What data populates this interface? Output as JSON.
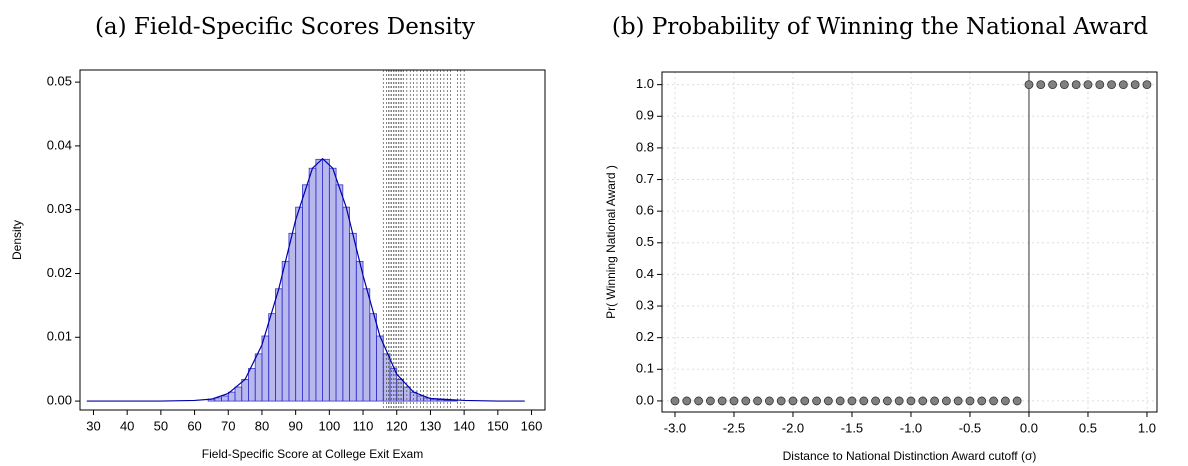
{
  "chart_data": [
    {
      "type": "histogram",
      "title": "(a) Field-Specific Scores Density",
      "x_label": "Field-Specific Score at College Exit Exam",
      "y_label": "Density",
      "color": "#3333cc",
      "bins": [
        64,
        66,
        68,
        70,
        72,
        74,
        76,
        78,
        80,
        82,
        84,
        86,
        88,
        90,
        92,
        94,
        96,
        98,
        100,
        102,
        104,
        106,
        108,
        110,
        112,
        114,
        116,
        118,
        120,
        122,
        124,
        126,
        128,
        130,
        132,
        134,
        136,
        138,
        140
      ],
      "values": [
        0.0003,
        0.0005,
        0.0008,
        0.0014,
        0.0022,
        0.0034,
        0.0051,
        0.0074,
        0.0102,
        0.0137,
        0.0176,
        0.0219,
        0.0263,
        0.0304,
        0.0339,
        0.0365,
        0.0379,
        0.0379,
        0.0365,
        0.0339,
        0.0304,
        0.0263,
        0.0219,
        0.0176,
        0.0137,
        0.0102,
        0.0074,
        0.0051,
        0.0034,
        0.0022,
        0.0014,
        0.0008,
        0.0005,
        0.0003,
        0.0002,
        0.0001,
        0.0001,
        0
      ],
      "curve": {
        "x": [
          28,
          50,
          60,
          65,
          70,
          75,
          80,
          85,
          90,
          95,
          98,
          101,
          105,
          110,
          115,
          120,
          125,
          130,
          140,
          150,
          158
        ],
        "y": [
          0,
          0,
          0.0001,
          0.0003,
          0.0012,
          0.0034,
          0.0088,
          0.0176,
          0.0284,
          0.0365,
          0.038,
          0.0365,
          0.0304,
          0.0197,
          0.0102,
          0.0042,
          0.0014,
          0.0004,
          0.0001,
          0,
          0
        ]
      },
      "cutoffs": [
        116,
        117,
        117.5,
        118,
        118.5,
        119,
        119.5,
        120,
        120.5,
        121,
        121.5,
        122,
        123,
        124,
        125,
        126,
        127,
        128,
        129,
        130,
        131,
        132,
        133,
        134,
        135,
        136,
        138,
        139,
        140
      ],
      "xlim": [
        26,
        164
      ],
      "ylim": [
        -0.0014,
        0.0519
      ],
      "xticks": [
        30,
        40,
        50,
        60,
        70,
        80,
        90,
        100,
        110,
        120,
        130,
        140,
        150,
        160
      ],
      "yticks": [
        {
          "value": 0,
          "label": "0.00"
        },
        {
          "value": 0.01,
          "label": "0.01"
        },
        {
          "value": 0.02,
          "label": "0.02"
        },
        {
          "value": 0.03,
          "label": "0.03"
        },
        {
          "value": 0.04,
          "label": "0.04"
        },
        {
          "value": 0.05,
          "label": "0.05"
        }
      ],
      "grid": false
    },
    {
      "type": "scatter",
      "title": "(b) Probability of Winning the National Award",
      "x_label": "Distance to National Distinction Award cutoff (σ)",
      "y_label": "Pr( Winning National Award )",
      "color": "#808080",
      "x": [
        -3,
        -2.9,
        -2.8,
        -2.7,
        -2.6,
        -2.5,
        -2.4,
        -2.3,
        -2.2,
        -2.1,
        -2,
        -1.9,
        -1.8,
        -1.7,
        -1.6,
        -1.5,
        -1.4,
        -1.3,
        -1.2,
        -1.1,
        -1,
        -0.9,
        -0.8,
        -0.7,
        -0.6,
        -0.5,
        -0.4,
        -0.3,
        -0.2,
        -0.1,
        0,
        0.1,
        0.2,
        0.3,
        0.4,
        0.5,
        0.6,
        0.7,
        0.8,
        0.9,
        1
      ],
      "values": [
        0,
        0,
        0,
        0,
        0,
        0,
        0,
        0,
        0,
        0,
        0,
        0,
        0,
        0,
        0,
        0,
        0,
        0,
        0,
        0,
        0,
        0,
        0,
        0,
        0,
        0,
        0,
        0,
        0,
        0,
        1,
        1,
        1,
        1,
        1,
        1,
        1,
        1,
        1,
        1,
        1
      ],
      "vline": 0,
      "xlim": [
        -3.11,
        1.085
      ],
      "ylim": [
        -0.035,
        1.04
      ],
      "xticks": [
        {
          "value": -3,
          "label": "-3.0"
        },
        {
          "value": -2.5,
          "label": "-2.5"
        },
        {
          "value": -2,
          "label": "-2.0"
        },
        {
          "value": -1.5,
          "label": "-1.5"
        },
        {
          "value": -1,
          "label": "-1.0"
        },
        {
          "value": -0.5,
          "label": "-0.5"
        },
        {
          "value": 0,
          "label": "0.0"
        },
        {
          "value": 0.5,
          "label": "0.5"
        },
        {
          "value": 1,
          "label": "1.0"
        }
      ],
      "yticks": [
        {
          "value": 0,
          "label": "0.0"
        },
        {
          "value": 0.1,
          "label": "0.1"
        },
        {
          "value": 0.2,
          "label": "0.2"
        },
        {
          "value": 0.3,
          "label": "0.3"
        },
        {
          "value": 0.4,
          "label": "0.4"
        },
        {
          "value": 0.5,
          "label": "0.5"
        },
        {
          "value": 0.6,
          "label": "0.6"
        },
        {
          "value": 0.7,
          "label": "0.7"
        },
        {
          "value": 0.8,
          "label": "0.8"
        },
        {
          "value": 0.9,
          "label": "0.9"
        },
        {
          "value": 1,
          "label": "1.0"
        }
      ],
      "grid": true
    }
  ]
}
